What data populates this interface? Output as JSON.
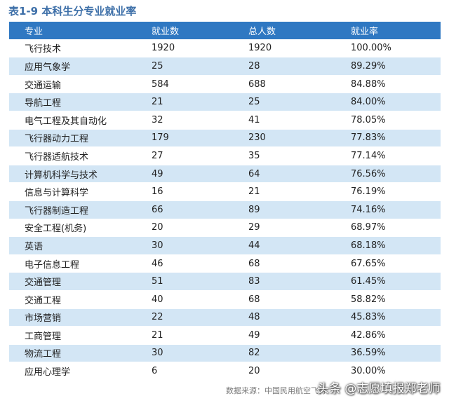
{
  "title": "表1-9 本科生分专业就业率",
  "table": {
    "headers": [
      "专业",
      "就业数",
      "总人数",
      "就业率"
    ],
    "rows": [
      [
        "飞行技术",
        "1920",
        "1920",
        "100.00%"
      ],
      [
        "应用气象学",
        "25",
        "28",
        "89.29%"
      ],
      [
        "交通运输",
        "584",
        "688",
        "84.88%"
      ],
      [
        "导航工程",
        "21",
        "25",
        "84.00%"
      ],
      [
        "电气工程及其自动化",
        "32",
        "41",
        "78.05%"
      ],
      [
        "飞行器动力工程",
        "179",
        "230",
        "77.83%"
      ],
      [
        "飞行器适航技术",
        "27",
        "35",
        "77.14%"
      ],
      [
        "计算机科学与技术",
        "49",
        "64",
        "76.56%"
      ],
      [
        "信息与计算科学",
        "16",
        "21",
        "76.19%"
      ],
      [
        "飞行器制造工程",
        "66",
        "89",
        "74.16%"
      ],
      [
        "安全工程(机务)",
        "20",
        "29",
        "68.97%"
      ],
      [
        "英语",
        "30",
        "44",
        "68.18%"
      ],
      [
        "电子信息工程",
        "46",
        "68",
        "67.65%"
      ],
      [
        "交通管理",
        "51",
        "83",
        "61.45%"
      ],
      [
        "交通工程",
        "40",
        "68",
        "58.82%"
      ],
      [
        "市场营销",
        "22",
        "48",
        "45.83%"
      ],
      [
        "工商管理",
        "21",
        "49",
        "42.86%"
      ],
      [
        "物流工程",
        "30",
        "82",
        "36.59%"
      ],
      [
        "应用心理学",
        "6",
        "20",
        "30.00%"
      ]
    ]
  },
  "source": "数据来源：中国民用航空飞行",
  "watermark": "头条 @志愿填报郑老师",
  "colors": {
    "header_bg": "#2f78c2",
    "stripe": "#d3e6f5",
    "title": "#3d6fa8"
  }
}
